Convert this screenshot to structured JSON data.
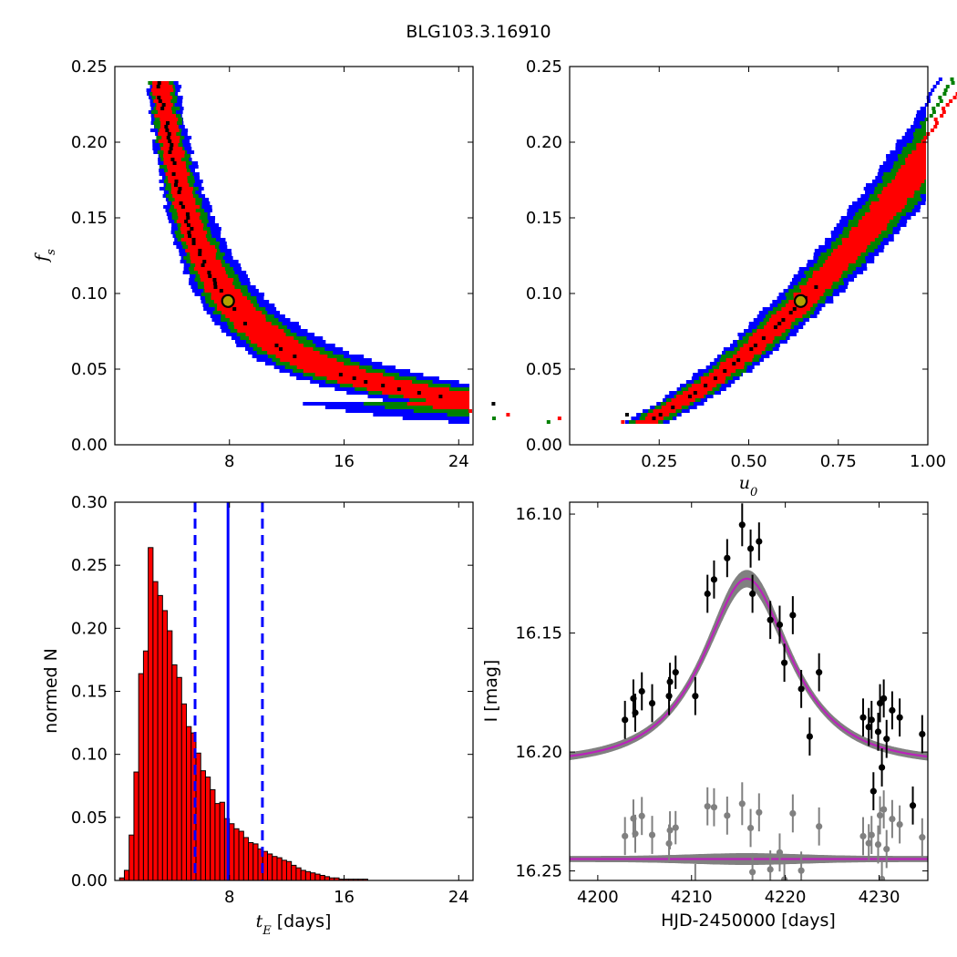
{
  "figure": {
    "title": "BLG103.3.16910"
  },
  "colors": {
    "sigma1": "#ff0000",
    "sigma2": "#008000",
    "sigma3": "#0000ff",
    "best_marker_fill": "#b3a000",
    "best_marker_edge": "#000000",
    "hist_bar": "#ff0000",
    "median_line": "#0000ff",
    "data_points": "#000000",
    "residual_points": "#808080",
    "model_band": "#808080",
    "model_line": "#bb22bb"
  },
  "chart_data": [
    {
      "id": "fs_vs_tE",
      "type": "heatmap",
      "xlabel": "",
      "ylabel": "f_s",
      "xlim": [
        0,
        25
      ],
      "ylim": [
        0,
        0.25
      ],
      "xticks": [
        8,
        16,
        24
      ],
      "yticks": [
        0.0,
        0.05,
        0.1,
        0.15,
        0.2,
        0.25
      ],
      "ytick_labels": [
        "0.00",
        "0.05",
        "0.10",
        "0.15",
        "0.20",
        "0.25"
      ],
      "best_fit": {
        "x": 7.9,
        "y": 0.095
      },
      "band_model": "fs = 0.753 / tE",
      "confidence_levels": [
        "1-sigma",
        "2-sigma",
        "3-sigma"
      ]
    },
    {
      "id": "fs_vs_u0",
      "type": "heatmap",
      "xlabel": "u_0",
      "ylabel": "",
      "xlim": [
        0,
        1.0
      ],
      "ylim": [
        0,
        0.25
      ],
      "xticks": [
        0.25,
        0.5,
        0.75,
        1.0
      ],
      "xtick_labels": [
        "0.25",
        "0.50",
        "0.75",
        "1.00"
      ],
      "yticks": [
        0.0,
        0.05,
        0.1,
        0.15,
        0.2,
        0.25
      ],
      "ytick_labels": [
        "0.00",
        "0.05",
        "0.10",
        "0.15",
        "0.20",
        "0.25"
      ],
      "best_fit": {
        "x": 0.645,
        "y": 0.095
      },
      "confidence_levels": [
        "1-sigma",
        "2-sigma",
        "3-sigma"
      ]
    },
    {
      "id": "tE_histogram",
      "type": "bar",
      "xlabel": "t_E [days]",
      "ylabel": "normed N",
      "xlim": [
        0,
        25
      ],
      "ylim": [
        0,
        0.3
      ],
      "xticks": [
        8,
        16,
        24
      ],
      "yticks": [
        0.0,
        0.05,
        0.1,
        0.15,
        0.2,
        0.25,
        0.3
      ],
      "ytick_labels": [
        "0.00",
        "0.05",
        "0.10",
        "0.15",
        "0.20",
        "0.25",
        "0.30"
      ],
      "bin_start": 0.0,
      "bin_width": 0.333,
      "values": [
        0.0,
        0.002,
        0.008,
        0.036,
        0.086,
        0.164,
        0.182,
        0.264,
        0.237,
        0.226,
        0.214,
        0.198,
        0.171,
        0.161,
        0.14,
        0.122,
        0.117,
        0.101,
        0.087,
        0.082,
        0.072,
        0.061,
        0.062,
        0.049,
        0.045,
        0.041,
        0.039,
        0.034,
        0.03,
        0.029,
        0.025,
        0.023,
        0.021,
        0.019,
        0.018,
        0.016,
        0.015,
        0.012,
        0.01,
        0.008,
        0.007,
        0.006,
        0.005,
        0.004,
        0.003,
        0.002,
        0.002,
        0.001,
        0.001,
        0.001,
        0.001,
        0.001,
        0.001,
        0.0,
        0.0,
        0.0,
        0.0,
        0.0,
        0.0,
        0.0,
        0.0,
        0.0,
        0.0,
        0.0,
        0.0,
        0.0,
        0.0,
        0.0,
        0.0,
        0.0,
        0.0,
        0.0,
        0.0
      ],
      "median": 7.9,
      "lower_bound": 5.6,
      "upper_bound": 10.3
    },
    {
      "id": "lightcurve",
      "type": "scatter",
      "xlabel": "HJD-2450000 [days]",
      "ylabel": "I [mag]",
      "xlim": [
        4197,
        4235.2
      ],
      "ylim": [
        16.254,
        16.095
      ],
      "y_inverted": true,
      "xticks": [
        4200,
        4210,
        4220,
        4230
      ],
      "yticks": [
        16.1,
        16.15,
        16.2,
        16.25
      ],
      "ytick_labels": [
        "16.10",
        "16.15",
        "16.20",
        "16.25"
      ],
      "model": {
        "t0": 4215.9,
        "tE": 7.9,
        "u0": 0.645,
        "fs": 0.095,
        "baseline": 16.205
      },
      "residual_offset": 16.245,
      "data": [
        [
          4202.9,
          16.1865,
          0.008
        ],
        [
          4203.8,
          16.1775,
          0.008
        ],
        [
          4204.0,
          16.1835,
          0.008
        ],
        [
          4204.7,
          16.1745,
          0.008
        ],
        [
          4205.8,
          16.1795,
          0.008
        ],
        [
          4207.6,
          16.1765,
          0.008
        ],
        [
          4207.7,
          16.1705,
          0.008
        ],
        [
          4208.3,
          16.1665,
          0.007
        ],
        [
          4210.4,
          16.1765,
          0.008
        ],
        [
          4211.7,
          16.1335,
          0.008
        ],
        [
          4212.4,
          16.1275,
          0.008
        ],
        [
          4213.8,
          16.1185,
          0.008
        ],
        [
          4215.4,
          16.1045,
          0.009
        ],
        [
          4216.3,
          16.1145,
          0.008
        ],
        [
          4216.5,
          16.1335,
          0.008
        ],
        [
          4217.2,
          16.1115,
          0.008
        ],
        [
          4218.4,
          16.1445,
          0.008
        ],
        [
          4219.4,
          16.1465,
          0.008
        ],
        [
          4219.9,
          16.1625,
          0.008
        ],
        [
          4220.8,
          16.1425,
          0.008
        ],
        [
          4221.7,
          16.1735,
          0.008
        ],
        [
          4222.6,
          16.1935,
          0.008
        ],
        [
          4223.6,
          16.1665,
          0.008
        ],
        [
          4228.3,
          16.1855,
          0.008
        ],
        [
          4228.9,
          16.1895,
          0.008
        ],
        [
          4229.2,
          16.1865,
          0.008
        ],
        [
          4229.4,
          16.2165,
          0.008
        ],
        [
          4229.9,
          16.1915,
          0.008
        ],
        [
          4230.1,
          16.1795,
          0.008
        ],
        [
          4230.3,
          16.2065,
          0.008
        ],
        [
          4230.5,
          16.1775,
          0.008
        ],
        [
          4230.8,
          16.1945,
          0.008
        ],
        [
          4231.4,
          16.1825,
          0.008
        ],
        [
          4232.2,
          16.1855,
          0.008
        ],
        [
          4233.6,
          16.2225,
          0.008
        ],
        [
          4234.6,
          16.1925,
          0.008
        ]
      ]
    }
  ]
}
